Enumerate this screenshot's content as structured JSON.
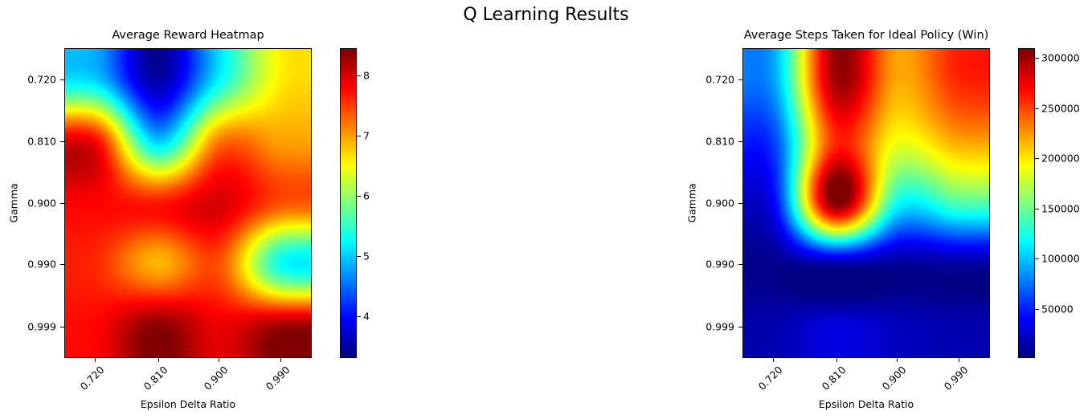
{
  "suptitle": "Q Learning Results",
  "chart_data": [
    {
      "type": "heatmap",
      "title": "Average Reward Heatmap",
      "xlabel": "Epsilon Delta Ratio",
      "ylabel": "Gamma",
      "x_ticks": [
        "0.720",
        "0.810",
        "0.900",
        "0.990"
      ],
      "y_ticks": [
        "0.720",
        "0.810",
        "0.900",
        "0.990",
        "0.999"
      ],
      "colormap": "jet",
      "colorbar_range": [
        3.3,
        8.45
      ],
      "colorbar_ticks": [
        "4",
        "5",
        "6",
        "7",
        "8"
      ],
      "values": [
        [
          5.0,
          3.5,
          5.2,
          6.6
        ],
        [
          7.8,
          5.0,
          7.2,
          7.0
        ],
        [
          7.8,
          7.7,
          8.0,
          7.4
        ],
        [
          7.6,
          6.9,
          7.4,
          5.3
        ],
        [
          7.8,
          8.4,
          7.9,
          8.3
        ]
      ]
    },
    {
      "type": "heatmap",
      "title": "Average Steps Taken for Ideal Policy (Win)",
      "xlabel": "Epsilon Delta Ratio",
      "ylabel": "Gamma",
      "x_ticks": [
        "0.720",
        "0.810",
        "0.900",
        "0.990"
      ],
      "y_ticks": [
        "0.720",
        "0.810",
        "0.900",
        "0.990",
        "0.999"
      ],
      "colormap": "jet",
      "colorbar_range": [
        1000,
        310000
      ],
      "colorbar_ticks": [
        "50000",
        "100000",
        "150000",
        "200000",
        "250000",
        "300000"
      ],
      "values": [
        [
          90000,
          300000,
          220000,
          260000
        ],
        [
          60000,
          260000,
          190000,
          220000
        ],
        [
          40000,
          310000,
          120000,
          140000
        ],
        [
          5000,
          10000,
          8000,
          10000
        ],
        [
          15000,
          30000,
          20000,
          15000
        ]
      ]
    }
  ]
}
